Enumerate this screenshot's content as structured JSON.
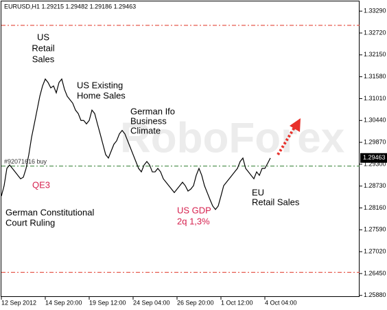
{
  "chart_data": {
    "type": "line",
    "header": "EURUSD,H1  1.29215 1.29482 1.29186 1.29463",
    "watermark": "RoboForex",
    "series": [
      {
        "name": "EURUSD,H1",
        "color": "#000000",
        "values": [
          1.2847,
          1.2874,
          1.2919,
          1.2928,
          1.2919,
          1.291,
          1.2901,
          1.2892,
          1.2896,
          1.2919,
          1.2955,
          1.3,
          1.3035,
          1.3071,
          1.3107,
          1.3134,
          1.3152,
          1.3143,
          1.3129,
          1.3134,
          1.3116,
          1.3143,
          1.3152,
          1.3125,
          1.3107,
          1.3098,
          1.3089,
          1.3071,
          1.3062,
          1.3044,
          1.3044,
          1.3035,
          1.3044,
          1.3071,
          1.3062,
          1.3035,
          1.3009,
          1.2982,
          1.2955,
          1.2946,
          1.2964,
          1.2982,
          1.2991,
          1.3009,
          1.3018,
          1.3009,
          1.2991,
          1.2973,
          1.2955,
          1.2937,
          1.2919,
          1.291,
          1.2928,
          1.2937,
          1.2928,
          1.291,
          1.291,
          1.2919,
          1.291,
          1.2892,
          1.2883,
          1.2874,
          1.2865,
          1.2856,
          1.2865,
          1.2874,
          1.2883,
          1.2874,
          1.286,
          1.2865,
          1.2874,
          1.2901,
          1.2919,
          1.2901,
          1.2874,
          1.2856,
          1.2838,
          1.2821,
          1.2812,
          1.2821,
          1.2847,
          1.2874,
          1.2883,
          1.2892,
          1.2901,
          1.291,
          1.2919,
          1.2937,
          1.2946,
          1.2919,
          1.291,
          1.2901,
          1.2892,
          1.291,
          1.2901,
          1.2919,
          1.2919,
          1.2932,
          1.2946
        ]
      }
    ],
    "current_price": 1.29463,
    "levels": [
      {
        "value": 1.3292,
        "color": "#e03020"
      },
      {
        "value": 1.2648,
        "color": "#e03020"
      },
      {
        "value": 1.2925,
        "color": "#2e7d2e",
        "label": "#92071616 buy"
      }
    ],
    "xlim": [
      -0.5,
      130.5
    ],
    "xticks": [
      {
        "value": 0,
        "label": "12 Sep 2012"
      },
      {
        "value": 16,
        "label": "14 Sep 20:00"
      },
      {
        "value": 32,
        "label": "19 Sep 12:00"
      },
      {
        "value": 48,
        "label": "24 Sep 04:00"
      },
      {
        "value": 64,
        "label": "26 Sep 20:00"
      },
      {
        "value": 80,
        "label": "1 Oct 12:00"
      },
      {
        "value": 96,
        "label": "4 Oct 04:00"
      }
    ],
    "ylim": [
      1.2584,
      1.3358
    ],
    "yticks": [
      {
        "value": 1.3329,
        "label": "1.33290"
      },
      {
        "value": 1.3272,
        "label": "1.32720"
      },
      {
        "value": 1.3215,
        "label": "1.32150"
      },
      {
        "value": 1.3158,
        "label": "1.31580"
      },
      {
        "value": 1.3101,
        "label": "1.31010"
      },
      {
        "value": 1.3044,
        "label": "1.30440"
      },
      {
        "value": 1.2987,
        "label": "1.29870"
      },
      {
        "value": 1.293,
        "label": "1.29300"
      },
      {
        "value": 1.2873,
        "label": "1.28730"
      },
      {
        "value": 1.2816,
        "label": "1.28160"
      },
      {
        "value": 1.2759,
        "label": "1.27590"
      },
      {
        "value": 1.2702,
        "label": "1.27020"
      },
      {
        "value": 1.2645,
        "label": "1.26450"
      },
      {
        "value": 1.2588,
        "label": "1.25880"
      }
    ],
    "annotations": [
      {
        "lines": [
          "US",
          "Retail",
          "Sales"
        ],
        "color": "#000000"
      },
      {
        "lines": [
          "US Existing",
          "Home Sales"
        ],
        "color": "#000000"
      },
      {
        "lines": [
          "German Ifo",
          "Business",
          "Climate"
        ],
        "color": "#000000"
      },
      {
        "lines": [
          "QE3"
        ],
        "color": "#d6204e"
      },
      {
        "lines": [
          "German Constitutional",
          "Court Ruling"
        ],
        "color": "#000000"
      },
      {
        "lines": [
          "US GDP",
          "2q 1,3%"
        ],
        "color": "#d6204e"
      },
      {
        "lines": [
          "EU",
          "Retail Sales"
        ],
        "color": "#000000"
      }
    ]
  }
}
